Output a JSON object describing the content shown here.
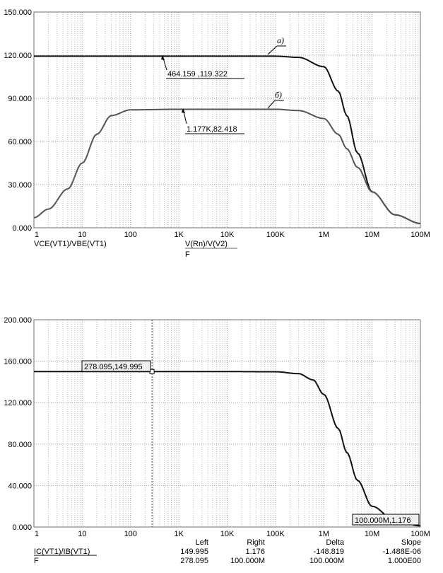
{
  "chart_data": [
    {
      "type": "line",
      "xscale": "log",
      "xlim": [
        1,
        100000000
      ],
      "ylim": [
        0,
        150
      ],
      "grid": true,
      "y_ticks": [
        "150.000",
        "120.000",
        "90.000",
        "60.000",
        "30.000",
        "0.000"
      ],
      "x_ticks": [
        "1",
        "10",
        "100",
        "1K",
        "10K",
        "100K",
        "1M",
        "10M",
        "100M"
      ],
      "trace_labels": [
        "VCE(VT1)/VBE(VT1)",
        "V(Rn)/V(V2)"
      ],
      "xlabel": "F",
      "series": [
        {
          "name": "a)",
          "color": "#111111",
          "x": [
            1,
            10,
            100,
            1000,
            10000,
            100000,
            300000,
            1000000,
            2000000,
            3000000,
            5000000,
            10000000,
            30000000,
            100000000
          ],
          "y": [
            119.3,
            119.3,
            119.3,
            119.3,
            119.3,
            119.3,
            118.5,
            112,
            95,
            78,
            52,
            25,
            9,
            3
          ]
        },
        {
          "name": "б)",
          "color": "#555555",
          "x": [
            1,
            2,
            5,
            10,
            20,
            40,
            100,
            1000,
            10000,
            100000,
            300000,
            1000000,
            2000000,
            3000000,
            5000000,
            10000000,
            30000000,
            100000000
          ],
          "y": [
            7,
            13,
            27,
            45,
            65,
            78,
            82,
            82.4,
            82.4,
            82.4,
            81.5,
            76,
            65,
            55,
            42,
            25,
            9,
            3
          ]
        }
      ],
      "annotations": [
        {
          "text": "464.159 ,119.322",
          "x": 464.159,
          "y": 119.322
        },
        {
          "text": "1.177K,82.418",
          "x": 1177,
          "y": 82.418
        }
      ]
    },
    {
      "type": "line",
      "xscale": "log",
      "xlim": [
        1,
        100000000
      ],
      "ylim": [
        0,
        200
      ],
      "grid": true,
      "y_ticks": [
        "200.000",
        "160.000",
        "120.000",
        "80.000",
        "40.000",
        "0.000"
      ],
      "x_ticks": [
        "1",
        "10",
        "100",
        "1K",
        "10K",
        "100K",
        "1M",
        "10M",
        "100M"
      ],
      "trace_labels": [
        "IC(VT1)/IB(VT1)"
      ],
      "xlabel": "F",
      "series": [
        {
          "name": "IC(VT1)/IB(VT1)",
          "color": "#111111",
          "x": [
            1,
            10,
            100,
            1000,
            10000,
            100000,
            300000,
            600000,
            1000000,
            2000000,
            3000000,
            5000000,
            10000000,
            30000000,
            100000000
          ],
          "y": [
            150,
            150,
            150,
            150,
            150,
            149.8,
            148,
            142,
            128,
            95,
            72,
            45,
            20,
            6,
            1.176
          ]
        }
      ],
      "annotations": [
        {
          "text": "278.095,149.995",
          "x": 278.095,
          "y": 149.995
        },
        {
          "text": "100.000M,1.176",
          "x": 100000000,
          "y": 1.176
        }
      ],
      "cursor_x": 278.095,
      "cursor_table": {
        "headers": [
          "Left",
          "Right",
          "Delta",
          "Slope"
        ],
        "rows": [
          {
            "label": "IC(VT1)/IB(VT1)",
            "values": [
              "149.995",
              "1.176",
              "-148.819",
              "-1.488E-06"
            ]
          },
          {
            "label": "F",
            "values": [
              "278.095",
              "100.000M",
              "100.000M",
              "1.000E00"
            ]
          }
        ]
      }
    }
  ]
}
